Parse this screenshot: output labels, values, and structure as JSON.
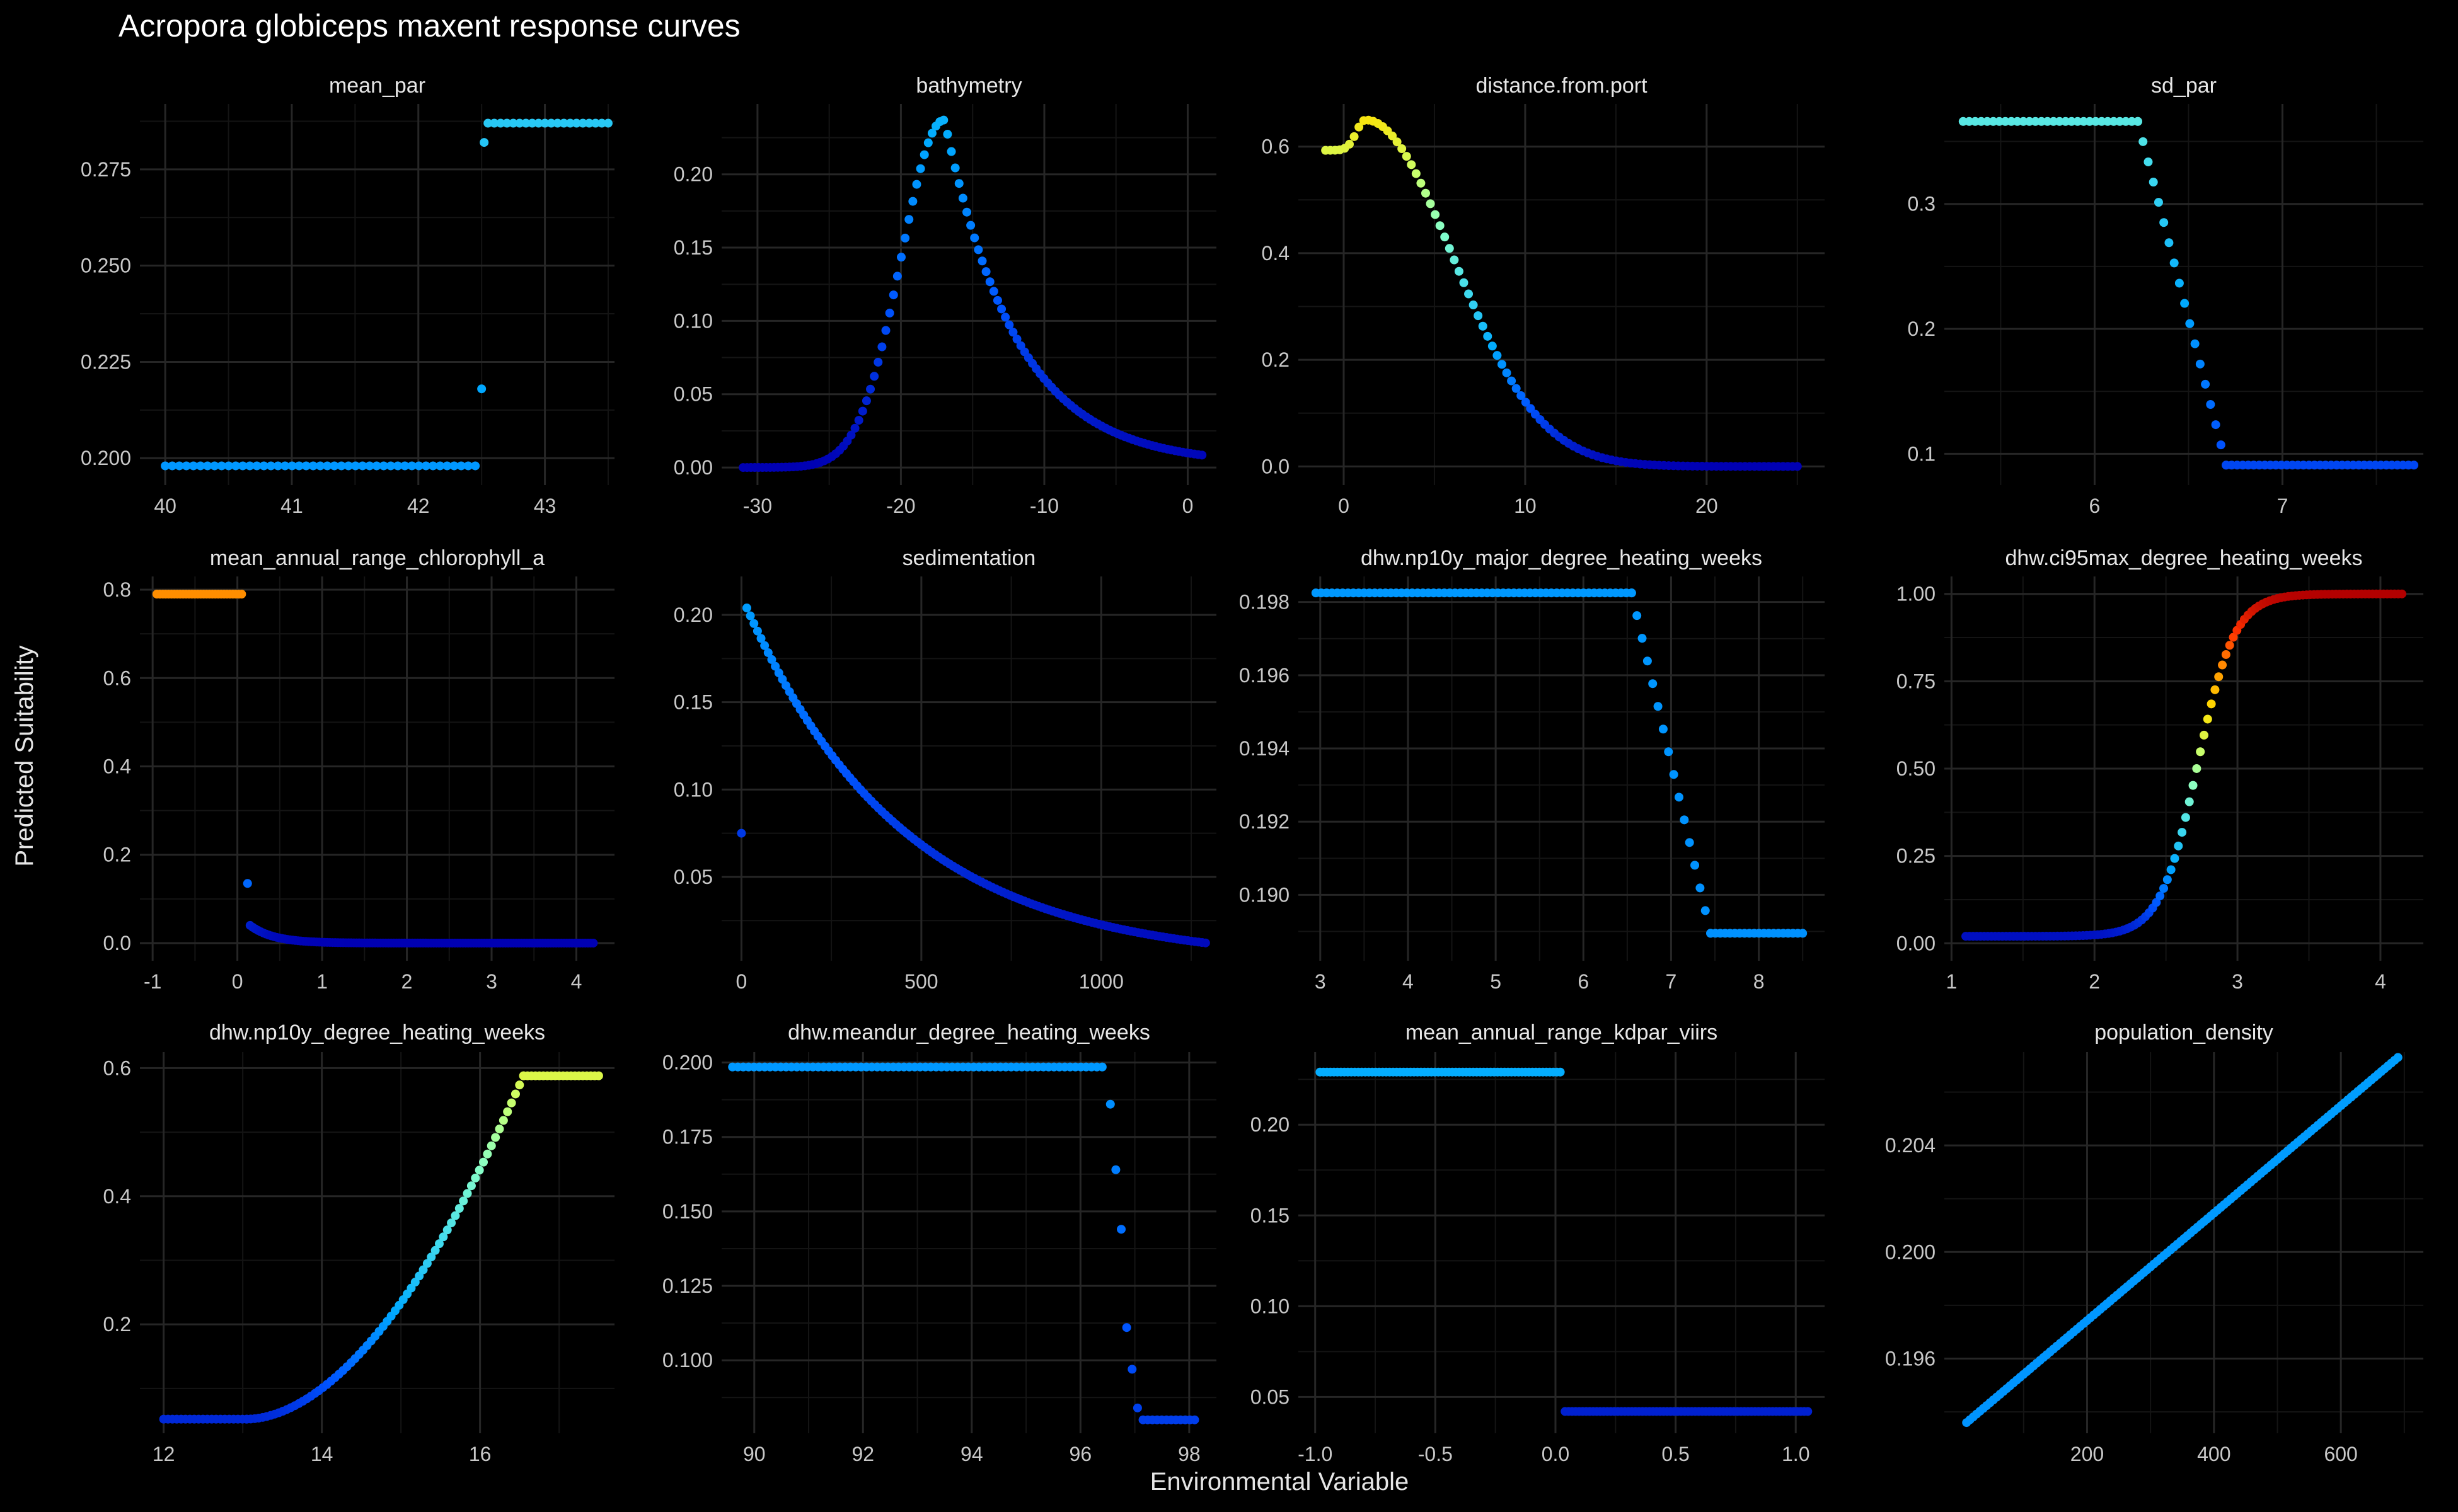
{
  "figure": {
    "title": "Acropora globiceps maxent response curves",
    "xlabel": "Environmental Variable",
    "ylabel": "Predicted Suitability",
    "background": "#000000",
    "text_color": "#e6e6e6",
    "tick_color": "#c8c8c8",
    "grid_major": "#262626",
    "grid_minor": "#141414",
    "palette": [
      "#0000b3",
      "#0055ff",
      "#00aaff",
      "#44ddee",
      "#88ffc8",
      "#ccff66",
      "#ffe000",
      "#ff9900",
      "#ff3300",
      "#b30000"
    ],
    "color_domain": [
      0,
      1
    ]
  },
  "chart_data": [
    {
      "type": "scatter",
      "title": "mean_par",
      "xlim": [
        39.8,
        43.55
      ],
      "ylim": [
        0.193,
        0.292
      ],
      "xticks": [
        40,
        41,
        42,
        43
      ],
      "yticks": [
        0.2,
        0.225,
        0.25,
        0.275
      ],
      "ydec": 3,
      "segments": [
        {
          "kind": "step",
          "x0": 40.0,
          "x1": 42.45,
          "y": 0.198,
          "n": 45
        },
        {
          "kind": "points",
          "pts": [
            [
              42.5,
              0.218
            ],
            [
              42.52,
              0.282
            ]
          ]
        },
        {
          "kind": "step",
          "x0": 42.55,
          "x1": 43.5,
          "y": 0.287,
          "n": 20
        }
      ]
    },
    {
      "type": "scatter",
      "title": "bathymetry",
      "xlim": [
        -32.5,
        2.0
      ],
      "ylim": [
        -0.012,
        0.248
      ],
      "xticks": [
        -30,
        -20,
        -10,
        0
      ],
      "yticks": [
        0.0,
        0.05,
        0.1,
        0.15,
        0.2
      ],
      "ydec": 2,
      "segments": [
        {
          "kind": "curve",
          "fn": "bathy",
          "x0": -31.0,
          "x1": 1.0,
          "n": 120
        }
      ]
    },
    {
      "type": "scatter",
      "title": "distance.from.port",
      "xlim": [
        -2.5,
        26.5
      ],
      "ylim": [
        -0.035,
        0.68
      ],
      "xticks": [
        0,
        10,
        20
      ],
      "yticks": [
        0.0,
        0.2,
        0.4,
        0.6
      ],
      "ydec": 1,
      "segments": [
        {
          "kind": "curve",
          "fn": "port",
          "x0": -1.0,
          "x1": 25.0,
          "n": 100
        }
      ]
    },
    {
      "type": "scatter",
      "title": "sd_par",
      "xlim": [
        5.2,
        7.75
      ],
      "ylim": [
        0.075,
        0.38
      ],
      "xticks": [
        6,
        7
      ],
      "yticks": [
        0.1,
        0.2,
        0.3
      ],
      "ydec": 1,
      "segments": [
        {
          "kind": "step",
          "x0": 5.3,
          "x1": 6.23,
          "y": 0.366,
          "n": 30
        },
        {
          "kind": "linear",
          "x0": 6.23,
          "y0": 0.366,
          "x1": 6.7,
          "y1": 0.091,
          "n": 18
        },
        {
          "kind": "step",
          "x0": 6.7,
          "x1": 7.7,
          "y": 0.091,
          "n": 35
        }
      ]
    },
    {
      "type": "scatter",
      "title": "mean_annual_range_chlorophyll_a",
      "xlim": [
        -1.15,
        4.45
      ],
      "ylim": [
        -0.04,
        0.83
      ],
      "xticks": [
        -1,
        0,
        1,
        2,
        3,
        4
      ],
      "yticks": [
        0.0,
        0.2,
        0.4,
        0.6,
        0.8
      ],
      "ydec": 1,
      "segments": [
        {
          "kind": "step",
          "x0": -0.95,
          "x1": 0.05,
          "y": 0.79,
          "n": 30
        },
        {
          "kind": "points",
          "pts": [
            [
              0.12,
              0.135
            ]
          ]
        },
        {
          "kind": "curve",
          "fn": "chl",
          "x0": 0.15,
          "x1": 4.2,
          "n": 130
        }
      ]
    },
    {
      "type": "scatter",
      "title": "sedimentation",
      "xlim": [
        -55,
        1320
      ],
      "ylim": [
        0.002,
        0.222
      ],
      "xticks": [
        0,
        500,
        1000
      ],
      "yticks": [
        0.05,
        0.1,
        0.15,
        0.2
      ],
      "ydec": 2,
      "segments": [
        {
          "kind": "points",
          "pts": [
            [
              0,
              0.075
            ]
          ]
        },
        {
          "kind": "curve",
          "fn": "sed",
          "x0": 15,
          "x1": 1290,
          "n": 130
        }
      ]
    },
    {
      "type": "scatter",
      "title": "dhw.np10y_major_degree_heating_weeks",
      "xlim": [
        2.75,
        8.75
      ],
      "ylim": [
        0.1882,
        0.1987
      ],
      "xticks": [
        3,
        4,
        5,
        6,
        7,
        8
      ],
      "yticks": [
        0.19,
        0.192,
        0.194,
        0.196,
        0.198
      ],
      "ydec": 3,
      "segments": [
        {
          "kind": "step",
          "x0": 2.95,
          "x1": 6.55,
          "y": 0.19825,
          "n": 60
        },
        {
          "kind": "linear",
          "x0": 6.55,
          "y0": 0.19825,
          "x1": 7.45,
          "y1": 0.18895,
          "n": 16
        },
        {
          "kind": "step",
          "x0": 7.45,
          "x1": 8.5,
          "y": 0.18895,
          "n": 20
        }
      ]
    },
    {
      "type": "scatter",
      "title": "dhw.ci95max_degree_heating_weeks",
      "xlim": [
        0.95,
        4.3
      ],
      "ylim": [
        -0.05,
        1.05
      ],
      "xticks": [
        1,
        2,
        3,
        4
      ],
      "yticks": [
        0.0,
        0.25,
        0.5,
        0.75,
        1.0
      ],
      "ydec": 2,
      "segments": [
        {
          "kind": "curve",
          "fn": "ci95",
          "x0": 1.1,
          "x1": 4.15,
          "n": 120
        }
      ]
    },
    {
      "type": "scatter",
      "title": "dhw.np10y_degree_heating_weeks",
      "xlim": [
        11.7,
        17.7
      ],
      "ylim": [
        0.03,
        0.625
      ],
      "xticks": [
        12,
        14,
        16
      ],
      "yticks": [
        0.2,
        0.4,
        0.6
      ],
      "ydec": 1,
      "segments": [
        {
          "kind": "step",
          "x0": 12.0,
          "x1": 13.05,
          "y": 0.052,
          "n": 20
        },
        {
          "kind": "curve",
          "fn": "np10",
          "x0": 13.05,
          "x1": 16.55,
          "n": 70
        },
        {
          "kind": "step",
          "x0": 16.55,
          "x1": 17.5,
          "y": 0.588,
          "n": 20
        }
      ]
    },
    {
      "type": "scatter",
      "title": "dhw.meandur_degree_heating_weeks",
      "xlim": [
        89.4,
        98.5
      ],
      "ylim": [
        0.0755,
        0.2035
      ],
      "xticks": [
        90,
        92,
        94,
        96,
        98
      ],
      "yticks": [
        0.1,
        0.125,
        0.15,
        0.175,
        0.2
      ],
      "ydec": 3,
      "segments": [
        {
          "kind": "step",
          "x0": 89.6,
          "x1": 96.4,
          "y": 0.1985,
          "n": 70
        },
        {
          "kind": "points",
          "pts": [
            [
              96.55,
              0.186
            ],
            [
              96.65,
              0.164
            ],
            [
              96.75,
              0.144
            ],
            [
              96.85,
              0.111
            ],
            [
              96.95,
              0.097
            ],
            [
              97.05,
              0.084
            ]
          ]
        },
        {
          "kind": "step",
          "x0": 97.15,
          "x1": 98.1,
          "y": 0.08,
          "n": 12
        }
      ]
    },
    {
      "type": "scatter",
      "title": "mean_annual_range_kdpar_viirs",
      "xlim": [
        -1.07,
        1.12
      ],
      "ylim": [
        0.03,
        0.24
      ],
      "xticks": [
        -1.0,
        -0.5,
        0.0,
        0.5,
        1.0
      ],
      "yticks": [
        0.05,
        0.1,
        0.15,
        0.2
      ],
      "ydec": 2,
      "segments": [
        {
          "kind": "step",
          "x0": -0.98,
          "x1": 0.02,
          "y": 0.229,
          "n": 70
        },
        {
          "kind": "step",
          "x0": 0.04,
          "x1": 1.05,
          "y": 0.042,
          "n": 70
        }
      ]
    },
    {
      "type": "scatter",
      "title": "population_density",
      "xlim": [
        -25,
        730
      ],
      "ylim": [
        0.1932,
        0.2075
      ],
      "xticks": [
        200,
        400,
        600
      ],
      "yticks": [
        0.196,
        0.2,
        0.204
      ],
      "ydec": 3,
      "segments": [
        {
          "kind": "linear",
          "x0": 10,
          "y0": 0.1936,
          "x1": 690,
          "y1": 0.2073,
          "n": 130
        }
      ]
    }
  ]
}
